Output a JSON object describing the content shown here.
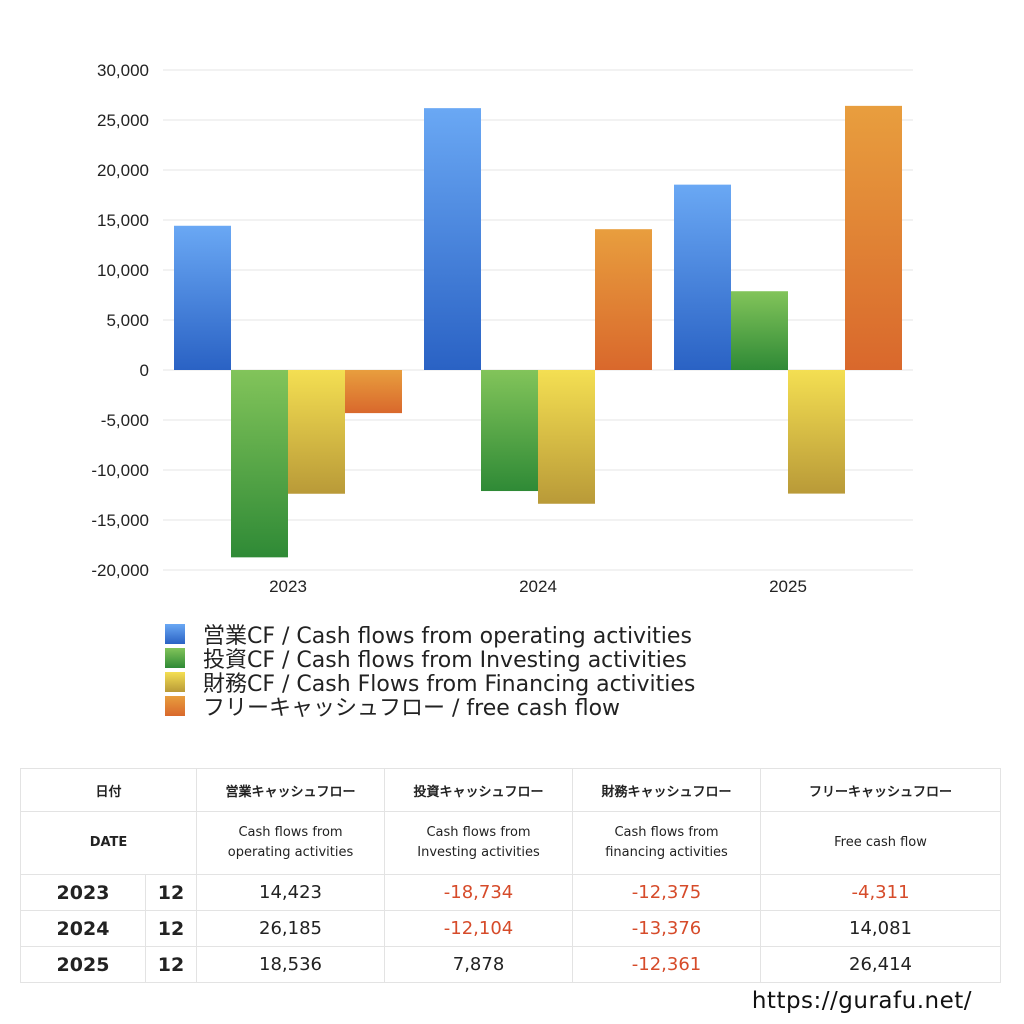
{
  "chart_data": {
    "type": "bar",
    "categories": [
      "2023",
      "2024",
      "2025"
    ],
    "series": [
      {
        "name": "営業CF / Cash flows from operating activities",
        "values": [
          14423,
          26185,
          18536
        ],
        "color_top": "#6aa8f4",
        "color_bottom": "#2a62c4"
      },
      {
        "name": "投資CF / Cash flows from Investing activities",
        "values": [
          -18734,
          -12104,
          7878
        ],
        "color_top": "#82c45a",
        "color_bottom": "#2f8a36"
      },
      {
        "name": "財務CF / Cash Flows from Financing activities",
        "values": [
          -12375,
          -13376,
          -12361
        ],
        "color_top": "#f4df52",
        "color_bottom": "#b99a38"
      },
      {
        "name": "フリーキャッシュフロー / free cash flow",
        "values": [
          -4311,
          14081,
          26414
        ],
        "color_top": "#e89e3e",
        "color_bottom": "#d9682c"
      }
    ],
    "ylim": [
      -20000,
      30000
    ],
    "yticks": [
      "30,000",
      "25,000",
      "20,000",
      "15,000",
      "10,000",
      "5,000",
      "0",
      "-5,000",
      "-10,000",
      "-15,000",
      "-20,000"
    ],
    "grid": true,
    "legend_position": "bottom"
  },
  "table": {
    "header_jp": [
      "日付",
      "営業キャッシュフロー",
      "投資キャッシュフロー",
      "財務キャッシュフロー",
      "フリーキャッシュフロー"
    ],
    "header_en": [
      "DATE",
      "Cash flows from operating activities",
      "Cash flows from Investing activities",
      "Cash flows from financing activities",
      "Free cash flow"
    ],
    "header_en_lines": [
      [
        "Cash flows from",
        "operating activities"
      ],
      [
        "Cash flows from",
        "Investing activities"
      ],
      [
        "Cash flows from",
        "financing activities"
      ]
    ],
    "rows": [
      {
        "year": "2023",
        "month": "12",
        "operating": "14,423",
        "investing": "-18,734",
        "financing": "-12,375",
        "free": "-4,311"
      },
      {
        "year": "2024",
        "month": "12",
        "operating": "26,185",
        "investing": "-12,104",
        "financing": "-13,376",
        "free": "14,081"
      },
      {
        "year": "2025",
        "month": "12",
        "operating": "18,536",
        "investing": "7,878",
        "financing": "-12,361",
        "free": "26,414"
      }
    ],
    "negative_color": "#d64b2a"
  },
  "footer_url": "https://gurafu.net/"
}
